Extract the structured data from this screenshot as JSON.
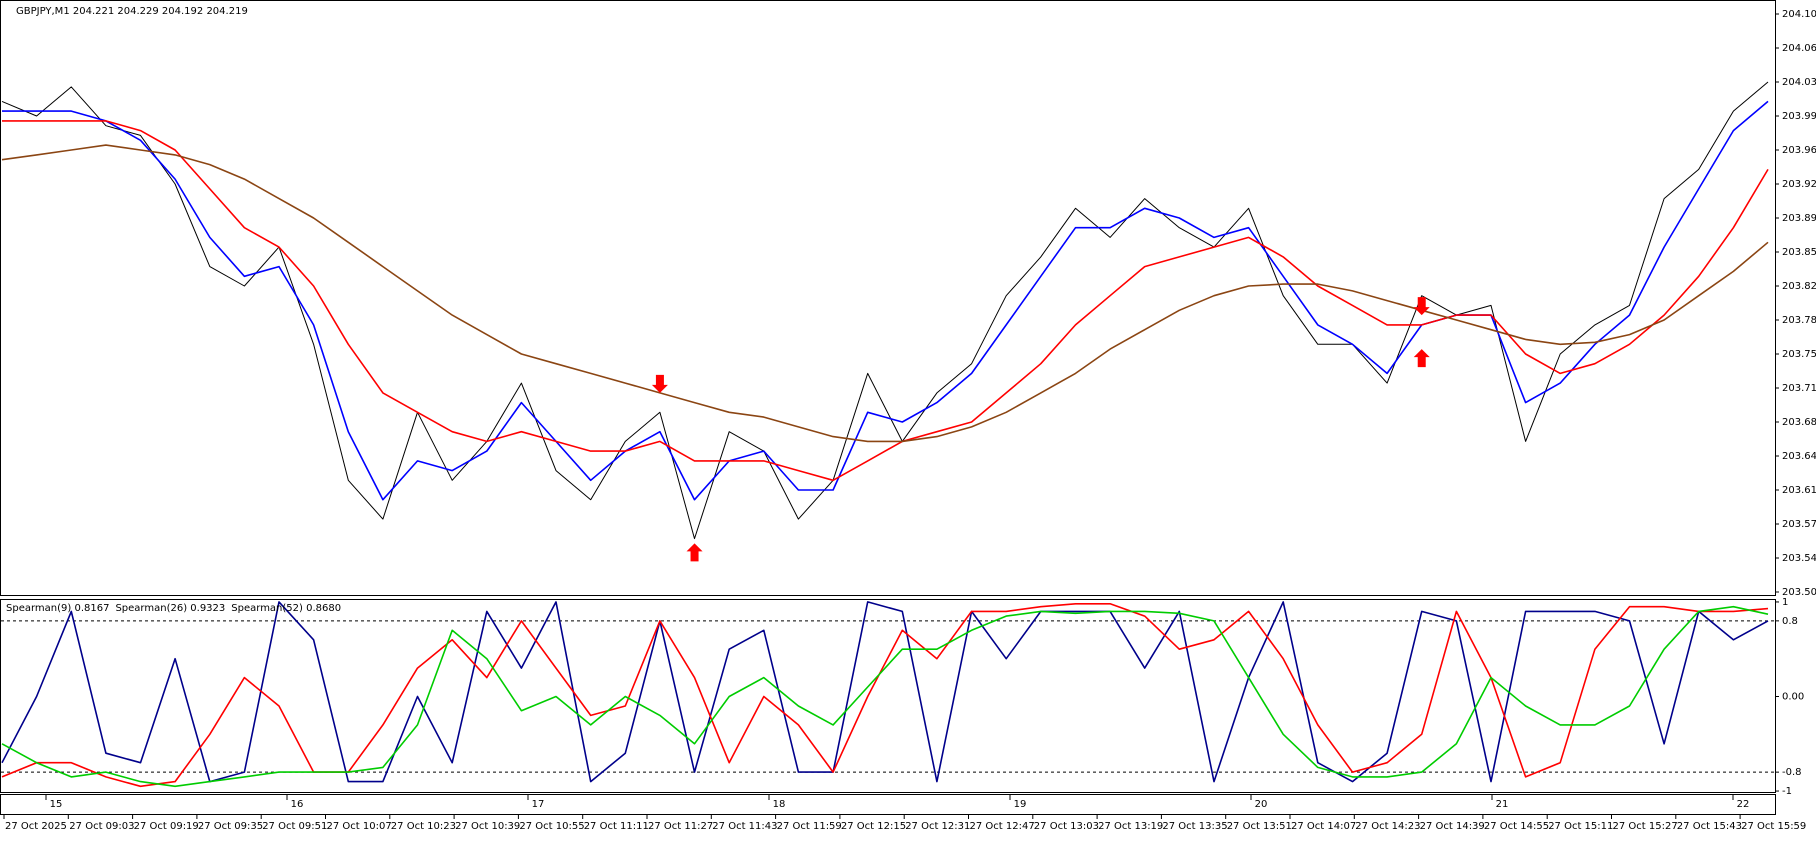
{
  "chart_data": [
    {
      "type": "line",
      "title": "GBPJPY,M1 204.221 204.229 204.192 204.219",
      "ylim": [
        203.505,
        204.1
      ],
      "yticks": [
        {
          "value": 203.505,
          "label": "203.505"
        },
        {
          "value": 203.54,
          "label": "203.540"
        },
        {
          "value": 203.575,
          "label": "203.575"
        },
        {
          "value": 203.61,
          "label": "203.610"
        },
        {
          "value": 203.645,
          "label": "203.645"
        },
        {
          "value": 203.68,
          "label": "203.680"
        },
        {
          "value": 203.715,
          "label": "203.715"
        },
        {
          "value": 203.75,
          "label": "203.750"
        },
        {
          "value": 203.785,
          "label": "203.785"
        },
        {
          "value": 203.82,
          "label": "203.820"
        },
        {
          "value": 203.855,
          "label": "203.855"
        },
        {
          "value": 203.89,
          "label": "203.890"
        },
        {
          "value": 203.925,
          "label": "203.925"
        },
        {
          "value": 203.96,
          "label": "203.960"
        },
        {
          "value": 203.995,
          "label": "203.995"
        },
        {
          "value": 204.03,
          "label": "204.030"
        },
        {
          "value": 204.065,
          "label": "204.065"
        },
        {
          "value": 204.1,
          "label": "204.100"
        }
      ],
      "series": [
        {
          "color": "#000000",
          "values": [
            204.01,
            203.995,
            204.025,
            203.985,
            203.975,
            203.925,
            203.84,
            203.82,
            203.86,
            203.76,
            203.62,
            203.58,
            203.69,
            203.62,
            203.66,
            203.72,
            203.63,
            203.6,
            203.66,
            203.69,
            203.56,
            203.67,
            203.65,
            203.58,
            203.62,
            203.73,
            203.66,
            203.71,
            203.74,
            203.81,
            203.85,
            203.9,
            203.87,
            203.91,
            203.88,
            203.86,
            203.9,
            203.81,
            203.76,
            203.76,
            203.72,
            203.81,
            203.79,
            203.8,
            203.66,
            203.75,
            203.78,
            203.8,
            203.91,
            203.94,
            204.0,
            204.03
          ]
        },
        {
          "color": "#0000ff",
          "values": [
            204.0,
            204.0,
            204.0,
            203.99,
            203.97,
            203.93,
            203.87,
            203.83,
            203.84,
            203.78,
            203.67,
            203.6,
            203.64,
            203.63,
            203.65,
            203.7,
            203.66,
            203.62,
            203.65,
            203.67,
            203.6,
            203.64,
            203.65,
            203.61,
            203.61,
            203.69,
            203.68,
            203.7,
            203.73,
            203.78,
            203.83,
            203.88,
            203.88,
            203.9,
            203.89,
            203.87,
            203.88,
            203.83,
            203.78,
            203.76,
            203.73,
            203.78,
            203.79,
            203.79,
            203.7,
            203.72,
            203.76,
            203.79,
            203.86,
            203.92,
            203.98,
            204.01
          ]
        },
        {
          "color": "#ff0000",
          "values": [
            203.99,
            203.99,
            203.99,
            203.99,
            203.98,
            203.96,
            203.92,
            203.88,
            203.86,
            203.82,
            203.76,
            203.71,
            203.69,
            203.67,
            203.66,
            203.67,
            203.66,
            203.65,
            203.65,
            203.66,
            203.64,
            203.64,
            203.64,
            203.63,
            203.62,
            203.64,
            203.66,
            203.67,
            203.68,
            203.71,
            203.74,
            203.78,
            203.81,
            203.84,
            203.85,
            203.86,
            203.87,
            203.85,
            203.82,
            203.8,
            203.78,
            203.78,
            203.79,
            203.79,
            203.75,
            203.73,
            203.74,
            203.76,
            203.79,
            203.83,
            203.88,
            203.94
          ]
        },
        {
          "color": "#8b4513",
          "values": [
            203.95,
            203.955,
            203.96,
            203.965,
            203.96,
            203.955,
            203.945,
            203.93,
            203.91,
            203.89,
            203.865,
            203.84,
            203.815,
            203.79,
            203.77,
            203.75,
            203.74,
            203.73,
            203.72,
            203.71,
            203.7,
            203.69,
            203.685,
            203.675,
            203.665,
            203.66,
            203.66,
            203.665,
            203.675,
            203.69,
            203.71,
            203.73,
            203.755,
            203.775,
            203.795,
            203.81,
            203.82,
            203.822,
            203.822,
            203.815,
            203.805,
            203.795,
            203.785,
            203.775,
            203.765,
            203.76,
            203.762,
            203.77,
            203.785,
            203.81,
            203.835,
            203.865
          ]
        }
      ],
      "markers": [
        {
          "index": 19,
          "direction": "down",
          "value": 203.71
        },
        {
          "index": 20,
          "direction": "up",
          "value": 203.555
        },
        {
          "index": 41,
          "direction": "down",
          "value": 203.79
        },
        {
          "index": 41,
          "direction": "up",
          "value": 203.755
        }
      ],
      "marker_color": "#ff0000"
    },
    {
      "type": "line",
      "ylim": [
        -1.01,
        1.01
      ],
      "yticks": [
        1,
        0.8,
        {
          "value": 0,
          "label": "0.00"
        },
        -0.8,
        -1
      ],
      "levels": [
        0.8,
        -0.8
      ],
      "series": [
        {
          "name": "Spearman(9) 0.8167",
          "color": "#00008b",
          "values": [
            -0.7,
            0.0,
            0.9,
            -0.6,
            -0.7,
            0.4,
            -0.9,
            -0.8,
            1.0,
            0.6,
            -0.9,
            -0.9,
            0.0,
            -0.7,
            0.9,
            0.3,
            1.0,
            -0.9,
            -0.6,
            0.8,
            -0.8,
            0.5,
            0.7,
            -0.8,
            -0.8,
            1.0,
            0.9,
            -0.9,
            0.9,
            0.4,
            0.9,
            0.9,
            0.9,
            0.3,
            0.9,
            -0.9,
            0.2,
            1.0,
            -0.7,
            -0.9,
            -0.6,
            0.9,
            0.8,
            -0.9,
            0.9,
            0.9,
            0.9,
            0.8,
            -0.5,
            0.9,
            0.6,
            0.8
          ]
        },
        {
          "name": "Spearman(26) 0.9323",
          "color": "#ff0000",
          "values": [
            -0.85,
            -0.7,
            -0.7,
            -0.85,
            -0.95,
            -0.9,
            -0.4,
            0.2,
            -0.1,
            -0.8,
            -0.8,
            -0.3,
            0.3,
            0.6,
            0.2,
            0.8,
            0.3,
            -0.2,
            -0.1,
            0.8,
            0.2,
            -0.7,
            0.0,
            -0.3,
            -0.8,
            0.0,
            0.7,
            0.4,
            0.9,
            0.9,
            0.95,
            0.98,
            0.98,
            0.85,
            0.5,
            0.6,
            0.9,
            0.4,
            -0.3,
            -0.8,
            -0.7,
            -0.4,
            0.9,
            0.2,
            -0.85,
            -0.7,
            0.5,
            0.95,
            0.95,
            0.9,
            0.9,
            0.93
          ]
        },
        {
          "name": "Spearman(52) 0.8680",
          "color": "#00cc00",
          "values": [
            -0.5,
            -0.7,
            -0.85,
            -0.8,
            -0.9,
            -0.95,
            -0.9,
            -0.85,
            -0.8,
            -0.8,
            -0.8,
            -0.75,
            -0.3,
            0.7,
            0.4,
            -0.15,
            0.0,
            -0.3,
            0.0,
            -0.2,
            -0.5,
            0.0,
            0.2,
            -0.1,
            -0.3,
            0.1,
            0.5,
            0.5,
            0.7,
            0.85,
            0.9,
            0.88,
            0.9,
            0.9,
            0.88,
            0.8,
            0.2,
            -0.4,
            -0.75,
            -0.85,
            -0.85,
            -0.8,
            -0.5,
            0.2,
            -0.1,
            -0.3,
            -0.3,
            -0.1,
            0.5,
            0.9,
            0.95,
            0.87
          ]
        }
      ]
    }
  ],
  "time_axis": {
    "day_labels": [
      "15",
      "16",
      "17",
      "18",
      "19",
      "20",
      "21",
      "22"
    ],
    "time_labels": [
      "27 Oct 2025",
      "27 Oct 09:03",
      "27 Oct 09:19",
      "27 Oct 09:35",
      "27 Oct 09:51",
      "27 Oct 10:07",
      "27 Oct 10:23",
      "27 Oct 10:39",
      "27 Oct 10:55",
      "27 Oct 11:11",
      "27 Oct 11:27",
      "27 Oct 11:43",
      "27 Oct 11:59",
      "27 Oct 12:15",
      "27 Oct 12:31",
      "27 Oct 12:47",
      "27 Oct 13:03",
      "27 Oct 13:19",
      "27 Oct 13:35",
      "27 Oct 13:51",
      "27 Oct 14:07",
      "27 Oct 14:23",
      "27 Oct 14:39",
      "27 Oct 14:55",
      "27 Oct 15:11",
      "27 Oct 15:27",
      "27 Oct 15:43",
      "27 Oct 15:59"
    ]
  }
}
